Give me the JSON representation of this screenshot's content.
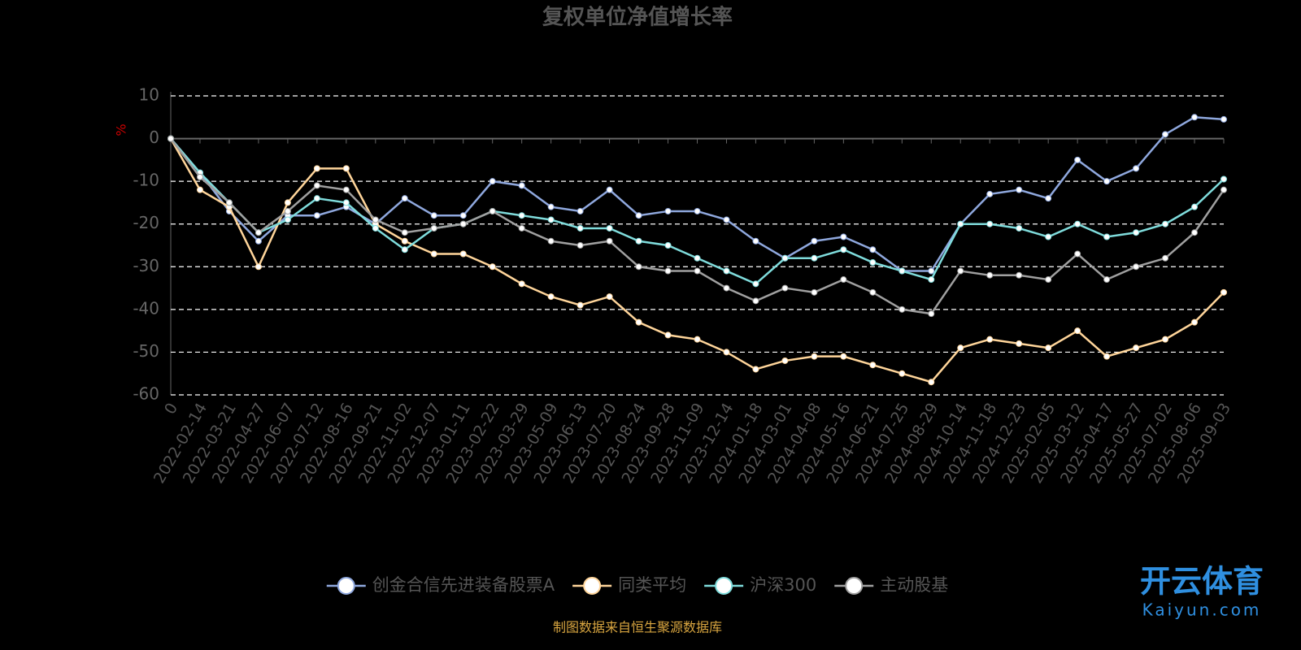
{
  "chart_data": {
    "type": "line",
    "title": "复权单位净值增长率",
    "y_label": "%",
    "categories": [
      "0",
      "2022-02-14",
      "2022-03-21",
      "2022-04-27",
      "2022-06-07",
      "2022-07-12",
      "2022-08-16",
      "2022-09-21",
      "2022-11-02",
      "2022-12-07",
      "2023-01-11",
      "2023-02-22",
      "2023-03-29",
      "2023-05-09",
      "2023-06-13",
      "2023-07-20",
      "2023-08-24",
      "2023-09-28",
      "2023-11-09",
      "2023-12-14",
      "2024-01-18",
      "2024-03-01",
      "2024-04-08",
      "2024-05-16",
      "2024-06-21",
      "2024-07-25",
      "2024-08-29",
      "2024-10-14",
      "2024-11-18",
      "2024-12-23",
      "2025-02-05",
      "2025-03-12",
      "2025-04-17",
      "2025-05-27",
      "2025-07-02",
      "2025-08-06",
      "2025-09-03"
    ],
    "series": [
      {
        "name": "创金合信先进装备股票A",
        "color": "#8fa8de",
        "values": [
          0,
          -8,
          -17,
          -24,
          -18,
          -18,
          -16,
          -20,
          -14,
          -18,
          -18,
          -10,
          -11,
          -16,
          -17,
          -12,
          -18,
          -17,
          -17,
          -19,
          -24,
          -28,
          -24,
          -23,
          -26,
          -31,
          -31,
          -20,
          -13,
          -12,
          -14,
          -5,
          -10,
          -7,
          1,
          5,
          4.5
        ]
      },
      {
        "name": "同类平均",
        "color": "#ffd59a",
        "values": [
          0,
          -12,
          -16,
          -30,
          -15,
          -7,
          -7,
          -20,
          -24,
          -27,
          -27,
          -30,
          -34,
          -37,
          -39,
          -37,
          -43,
          -46,
          -47,
          -50,
          -54,
          -52,
          -51,
          -51,
          -53,
          -55,
          -57,
          -49,
          -47,
          -48,
          -49,
          -45,
          -51,
          -49,
          -47,
          -43,
          -36
        ]
      },
      {
        "name": "沪深300",
        "color": "#7fdcdc",
        "values": [
          0,
          -8,
          -15,
          -22,
          -19,
          -14,
          -15,
          -21,
          -26,
          -21,
          -20,
          -17,
          -18,
          -19,
          -21,
          -21,
          -24,
          -25,
          -28,
          -31,
          -34,
          -28,
          -28,
          -26,
          -29,
          -31,
          -33,
          -20,
          -20,
          -21,
          -23,
          -20,
          -23,
          -22,
          -20,
          -16,
          -9.5
        ]
      },
      {
        "name": "主动股基",
        "color": "#a0a0a0",
        "values": [
          0,
          -9,
          -15,
          -22,
          -17,
          -11,
          -12,
          -19,
          -22,
          -21,
          -20,
          -17,
          -21,
          -24,
          -25,
          -24,
          -30,
          -31,
          -31,
          -35,
          -38,
          -35,
          -36,
          -33,
          -36,
          -40,
          -41,
          -31,
          -32,
          -32,
          -33,
          -27,
          -33,
          -30,
          -28,
          -22,
          -12
        ]
      }
    ],
    "ylim": [
      -60,
      10
    ],
    "yticks": [
      10,
      0,
      -10,
      -20,
      -30,
      -40,
      -50,
      -60
    ],
    "grid": true,
    "source_note": "制图数据来自恒生聚源数据库",
    "watermark": "开云体育",
    "watermark_url": "Kaiyun.com"
  }
}
